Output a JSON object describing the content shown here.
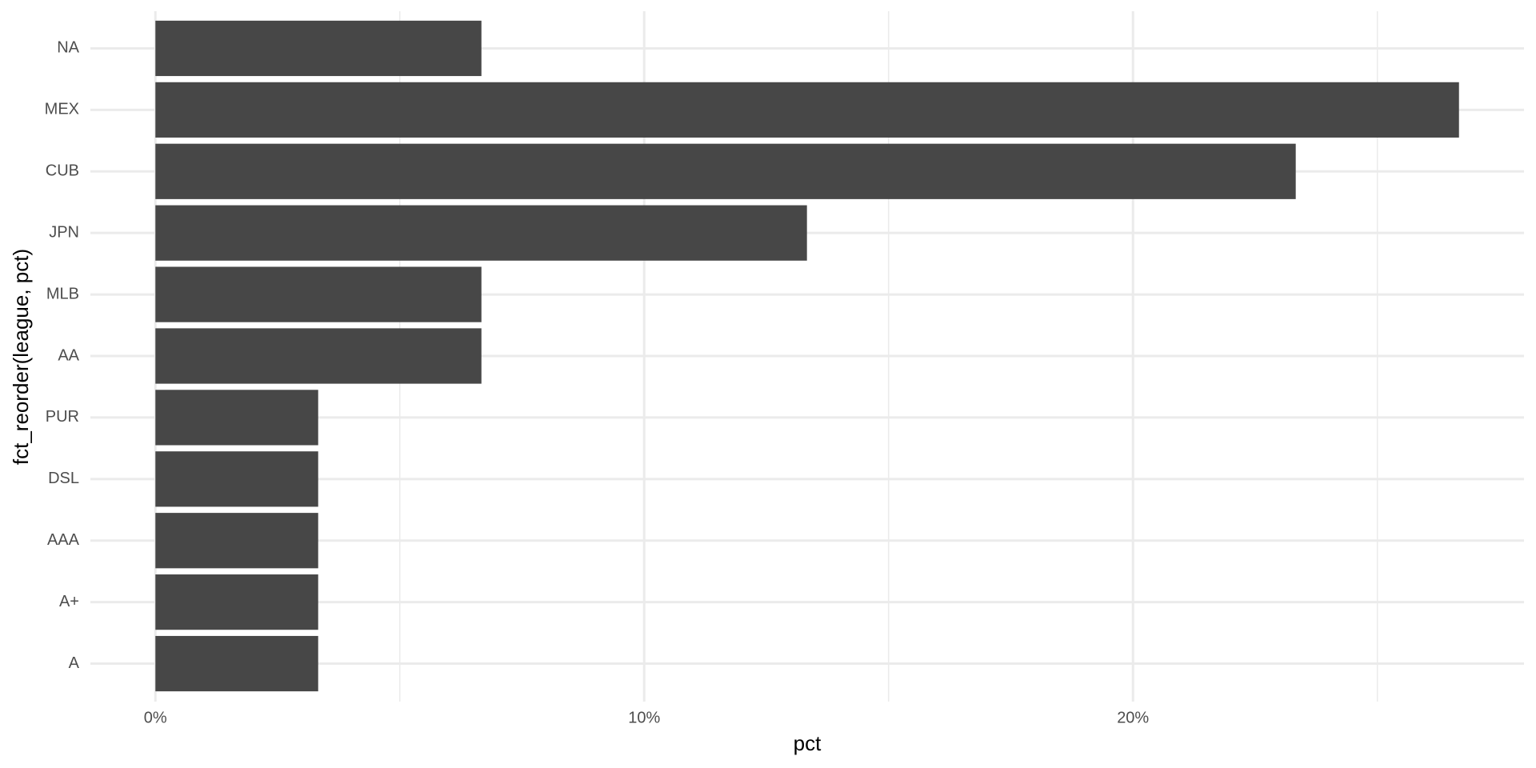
{
  "chart_data": {
    "type": "bar",
    "orientation": "horizontal",
    "x_label": "pct",
    "y_label": "fct_reorder(league, pct)",
    "categories": [
      "NA",
      "MEX",
      "CUB",
      "JPN",
      "MLB",
      "AA",
      "PUR",
      "DSL",
      "AAA",
      "A+",
      "A"
    ],
    "values": [
      6.67,
      26.67,
      23.33,
      13.33,
      6.67,
      6.67,
      3.33,
      3.33,
      3.33,
      3.33,
      3.33
    ],
    "color": "#474747",
    "xlim": [
      -1.33,
      28.0
    ],
    "xticks": [
      {
        "value": 0,
        "label": "0%"
      },
      {
        "value": 10,
        "label": "10%"
      },
      {
        "value": 20,
        "label": "20%"
      }
    ],
    "x_minor_ticks": [
      5,
      15,
      25
    ],
    "grid": true
  }
}
